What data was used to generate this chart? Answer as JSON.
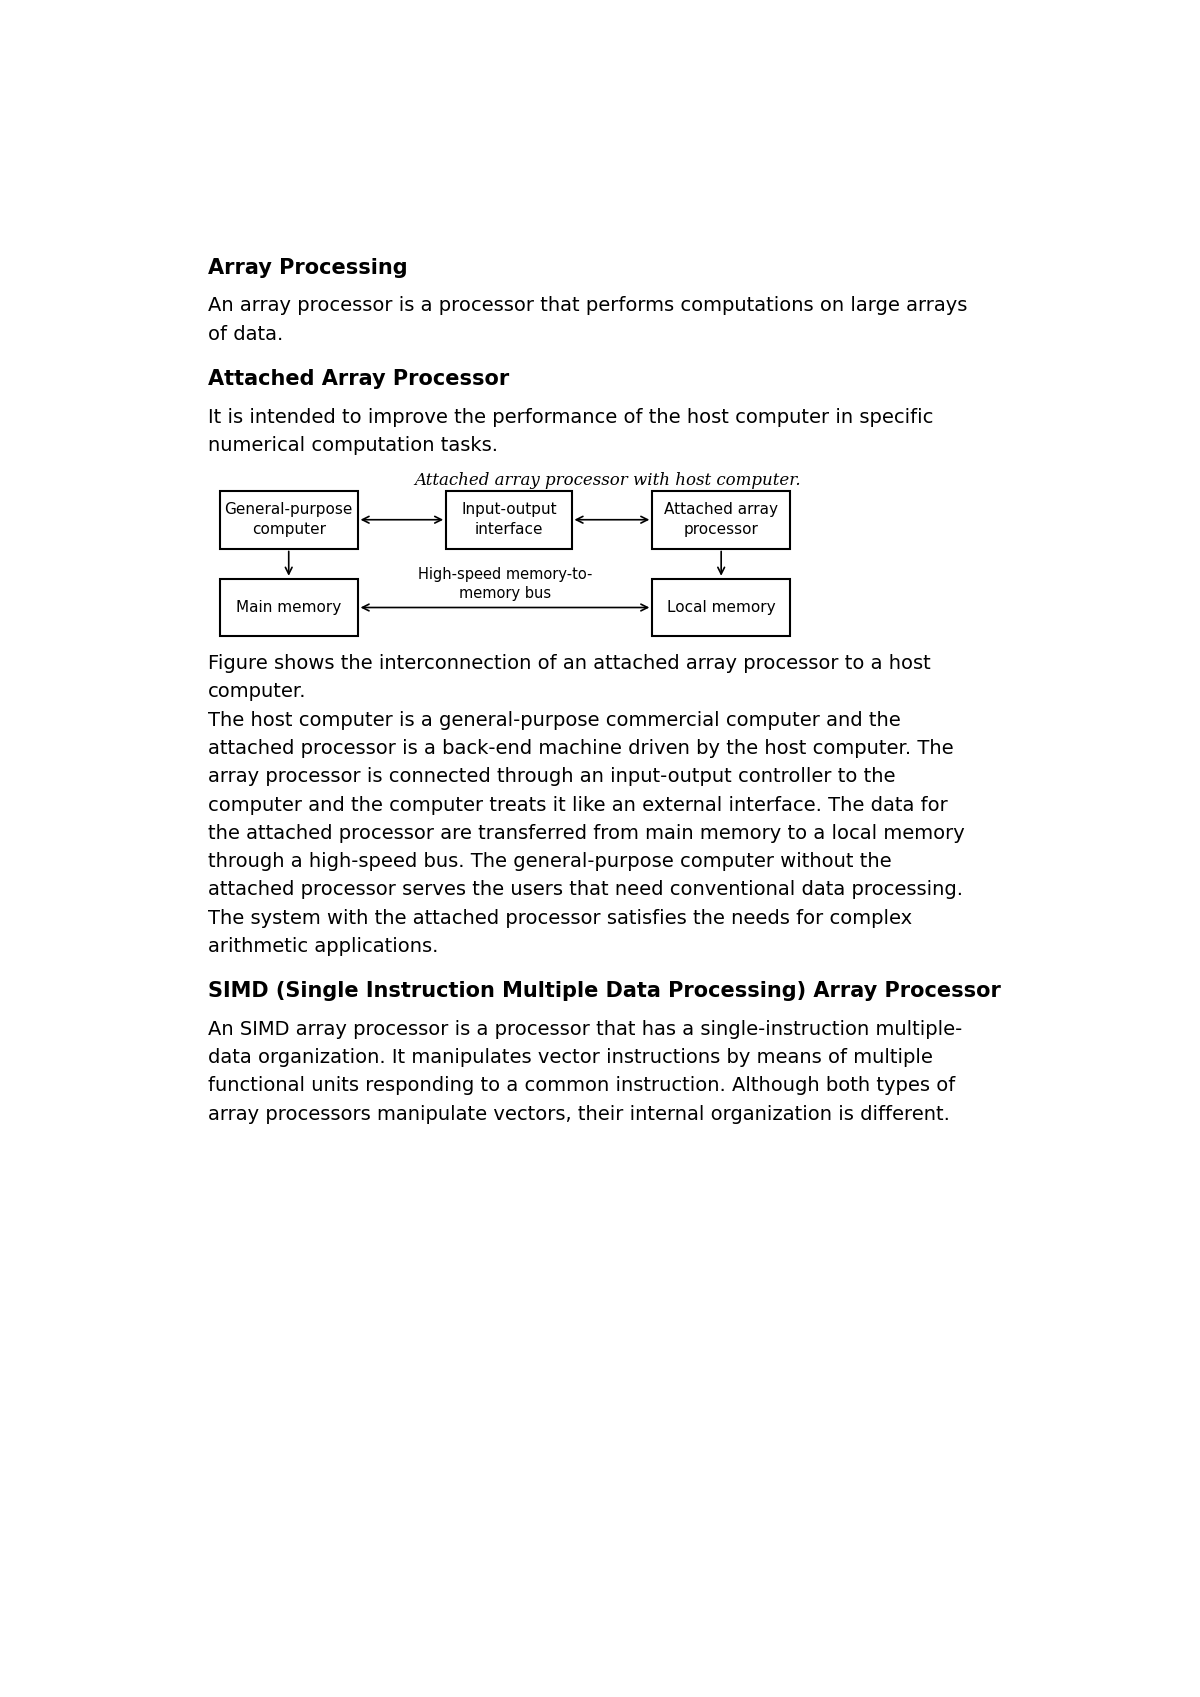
{
  "title1": "Array Processing",
  "para1": "An array processor is a processor that performs computations on large arrays\nof data.",
  "title2": "Attached Array Processor",
  "para2": "It is intended to improve the performance of the host computer in specific\nnumerical computation tasks.",
  "diagram_title": "Attached array processor with host computer.",
  "box1_label": "General-purpose\ncomputer",
  "box2_label": "Input-output\ninterface",
  "box3_label": "Attached array\nprocessor",
  "box4_label": "Main memory",
  "box5_label": "High-speed memory-to-\nmemory bus",
  "box6_label": "Local memory",
  "para3": "Figure shows the interconnection of an attached array processor to a host\ncomputer.\nThe host computer is a general-purpose commercial computer and the\nattached processor is a back-end machine driven by the host computer. The\narray processor is connected through an input-output controller to the\ncomputer and the computer treats it like an external interface. The data for\nthe attached processor are transferred from main memory to a local memory\nthrough a high-speed bus. The general-purpose computer without the\nattached processor serves the users that need conventional data processing.\nThe system with the attached processor satisfies the needs for complex\narithmetic applications.",
  "title3": "SIMD (Single Instruction Multiple Data Processing) Array Processor",
  "para4": "An SIMD array processor is a processor that has a single-instruction multiple-\ndata organization. It manipulates vector instructions by means of multiple\nfunctional units responding to a common instruction. Although both types of\narray processors manipulate vectors, their internal organization is different.",
  "bg_color": "#ffffff",
  "text_color": "#000000",
  "diagram_title_color": "#000000",
  "box_text_color": "#000000",
  "box_edge_color": "#000000",
  "arrow_color": "#000000"
}
